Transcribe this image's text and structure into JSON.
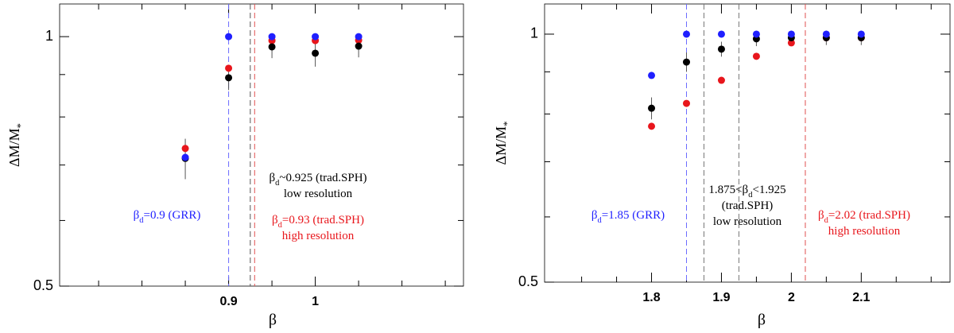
{
  "chart_data": [
    {
      "type": "scatter",
      "x_label": "β",
      "y_label": [
        "ΔM/M",
        "*"
      ],
      "log_y": true,
      "xlim": [
        0.705,
        1.171
      ],
      "ylim": [
        0.5,
        1.095
      ],
      "xticks": [
        0.9,
        1
      ],
      "minor_xticks": [
        0.75,
        0.8,
        0.85,
        0.95,
        1.05,
        1.1,
        1.15
      ],
      "yticks": [
        0.5,
        1
      ],
      "minor_yticks": [
        0.6,
        0.7,
        0.8,
        0.9
      ],
      "series": [
        {
          "color": "#1f1fff",
          "x": [
            0.85,
            0.9,
            0.95,
            1.0,
            1.05
          ],
          "values": [
            0.715,
            1.0,
            1.0,
            1.0,
            1.0
          ]
        },
        {
          "color": "#e8161c",
          "x": [
            0.85,
            0.9,
            0.95,
            1.0,
            1.05
          ],
          "values": [
            0.733,
            0.916,
            0.989,
            0.989,
            0.99
          ]
        },
        {
          "color": "#000000",
          "x": [
            0.85,
            0.9,
            0.95,
            1.0,
            1.05
          ],
          "values": [
            0.713,
            0.892,
            0.972,
            0.955,
            0.974
          ],
          "errors": [
            0.04,
            0.03,
            0.03,
            0.035,
            0.03
          ]
        }
      ],
      "vlines": [
        {
          "x": 0.9,
          "color": "#6b6bff"
        },
        {
          "x": 0.925,
          "color": "#555555"
        },
        {
          "x": 0.93,
          "color": "#e05050"
        }
      ],
      "annotations": [
        {
          "color": "#1f1fff",
          "lines": [
            [
              "β",
              "d",
              "=0.9 (GRR)"
            ]
          ]
        },
        {
          "color": "#000000",
          "lines": [
            [
              "β",
              "d",
              "~0.925 (trad.SPH)"
            ],
            [
              "low resolution"
            ]
          ]
        },
        {
          "color": "#e8161c",
          "lines": [
            [
              "β",
              "d",
              "=0.93 (trad.SPH)"
            ],
            [
              "high resolution"
            ]
          ]
        }
      ]
    },
    {
      "type": "scatter",
      "x_label": "β",
      "y_label": [
        "ΔM/M",
        "*"
      ],
      "log_y": true,
      "xlim": [
        1.647,
        2.227
      ],
      "ylim": [
        0.5,
        1.088
      ],
      "xticks": [
        1.8,
        1.9,
        2,
        2.1
      ],
      "minor_xticks": [
        1.7,
        1.75,
        1.85,
        1.95,
        2.05,
        2.15,
        2.2
      ],
      "yticks": [
        0.5,
        1
      ],
      "minor_yticks": [
        0.6,
        0.7,
        0.8,
        0.9
      ],
      "series": [
        {
          "color": "#1f1fff",
          "x": [
            1.8,
            1.85,
            1.9,
            1.95,
            2.0,
            2.05,
            2.1
          ],
          "values": [
            0.891,
            1.0,
            1.0,
            1.0,
            1.0,
            1.0,
            1.0
          ]
        },
        {
          "color": "#e8161c",
          "x": [
            1.8,
            1.85,
            1.9,
            1.95,
            2.0,
            2.05,
            2.1
          ],
          "values": [
            0.773,
            0.824,
            0.879,
            0.94,
            0.976,
            0.99,
            0.99
          ]
        },
        {
          "color": "#000000",
          "x": [
            1.8,
            1.85,
            1.9,
            1.95,
            2.0,
            2.05,
            2.1
          ],
          "values": [
            0.813,
            0.925,
            0.959,
            0.987,
            0.99,
            0.99,
            0.99
          ],
          "errors": [
            0.025,
            0.025,
            0.02,
            0.02,
            0.02,
            0.02,
            0.02
          ]
        }
      ],
      "vlines": [
        {
          "x": 1.85,
          "color": "#6b6bff"
        },
        {
          "x": 1.875,
          "color": "#777777"
        },
        {
          "x": 1.925,
          "color": "#777777"
        },
        {
          "x": 2.02,
          "color": "#e05050"
        }
      ],
      "annotations": [
        {
          "color": "#1f1fff",
          "lines": [
            [
              "β",
              "d",
              "=1.85 (GRR)"
            ]
          ]
        },
        {
          "color": "#000000",
          "lines": [
            [
              "1.875<β",
              "d",
              "<1.925"
            ],
            [
              "(trad.SPH)"
            ],
            [
              "low resolution"
            ]
          ]
        },
        {
          "color": "#e8161c",
          "lines": [
            [
              "β",
              "d",
              "=2.02 (trad.SPH)"
            ],
            [
              "high resolution"
            ]
          ]
        }
      ]
    }
  ]
}
